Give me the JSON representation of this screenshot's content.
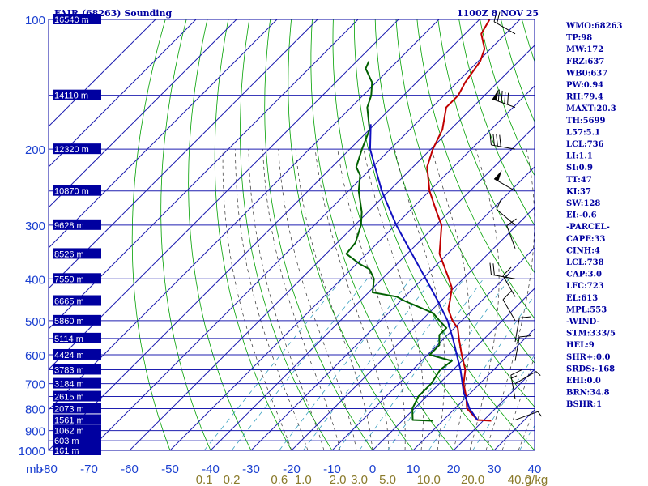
{
  "header": {
    "title": "FAIR (68263) Sounding",
    "valid_time": "1100Z  8 NOV 25"
  },
  "colors": {
    "frame": "#0000a0",
    "isobar": "#1f1fb0",
    "isotherm": "#1f1fb0",
    "dry_adiabat": "#00a000",
    "moist_adiabat": "#303030",
    "mixing_ratio": "#3aa0c0",
    "temperature": "#c00000",
    "dewpoint": "#006000",
    "parcel": "#1010c0",
    "barb": "#000000"
  },
  "chart_data": {
    "type": "line",
    "title": "FAIR (68263) Sounding",
    "diagram": "skew-T log-P",
    "pressure_unit": "mb",
    "pressure_ticks": [
      100,
      200,
      300,
      400,
      500,
      600,
      700,
      800,
      900,
      1000
    ],
    "temperature_ticks": [
      -80,
      -70,
      -60,
      -50,
      -40,
      -30,
      -20,
      -10,
      0,
      10,
      20,
      30,
      40
    ],
    "temperature_tick_labels": [
      "-80",
      "-70",
      "-60",
      "-50",
      "-40",
      "-30",
      "-20",
      "-10",
      "0",
      "10",
      "20",
      "30",
      "40"
    ],
    "xlim": [
      -80,
      40
    ],
    "ylim": [
      1000,
      100
    ],
    "grid": true,
    "mixing_ratio_labels": [
      "0.1",
      "0.2",
      "0.6",
      "1.0",
      "2.0",
      "3.0",
      "5.0",
      "10.0",
      "20.0",
      "40.0",
      "g/kg"
    ],
    "mixing_ratio_values": [
      0.1,
      0.2,
      0.6,
      1.0,
      2.0,
      3.0,
      5.0,
      10.0,
      20.0,
      40.0
    ],
    "height_labels": [
      {
        "p": 100,
        "label": "16540 m"
      },
      {
        "p": 150,
        "label": "14110 m"
      },
      {
        "p": 200,
        "label": "12320 m"
      },
      {
        "p": 250,
        "label": "10870 m"
      },
      {
        "p": 300,
        "label": "9628 m"
      },
      {
        "p": 350,
        "label": "8526 m"
      },
      {
        "p": 400,
        "label": "7550 m"
      },
      {
        "p": 450,
        "label": "6665 m"
      },
      {
        "p": 500,
        "label": "5860 m"
      },
      {
        "p": 550,
        "label": "5114 m"
      },
      {
        "p": 600,
        "label": "4424 m"
      },
      {
        "p": 650,
        "label": "3783 m"
      },
      {
        "p": 700,
        "label": "3184 m"
      },
      {
        "p": 750,
        "label": "2615 m"
      },
      {
        "p": 800,
        "label": "2073 m"
      },
      {
        "p": 850,
        "label": "1561 m"
      },
      {
        "p": 900,
        "label": "1062 m"
      },
      {
        "p": 950,
        "label": "603 m"
      },
      {
        "p": 1000,
        "label": "161 m"
      }
    ],
    "series": [
      {
        "key": "temperature",
        "points": [
          [
            854,
            22
          ],
          [
            850,
            18.4
          ],
          [
            800,
            13
          ],
          [
            750,
            9.8
          ],
          [
            700,
            6
          ],
          [
            650,
            3
          ],
          [
            600,
            -1.6
          ],
          [
            550,
            -6.3
          ],
          [
            520,
            -9.2
          ],
          [
            500,
            -12.3
          ],
          [
            470,
            -16.2
          ],
          [
            450,
            -17.8
          ],
          [
            420,
            -20.5
          ],
          [
            400,
            -23.5
          ],
          [
            350,
            -32
          ],
          [
            300,
            -38.6
          ],
          [
            280,
            -43
          ],
          [
            250,
            -50
          ],
          [
            220,
            -56.5
          ],
          [
            200,
            -59.5
          ],
          [
            180,
            -62
          ],
          [
            160,
            -66.5
          ],
          [
            150,
            -66.5
          ],
          [
            140,
            -68
          ],
          [
            125,
            -69.5
          ],
          [
            117,
            -71.5
          ],
          [
            108,
            -76
          ],
          [
            100,
            -77.5
          ]
        ]
      },
      {
        "key": "dewpoint",
        "points": [
          [
            854,
            7.5
          ],
          [
            850,
            2.4
          ],
          [
            800,
            -0.5
          ],
          [
            750,
            -2
          ],
          [
            700,
            -2
          ],
          [
            650,
            -3.2
          ],
          [
            620,
            -2.5
          ],
          [
            600,
            -9.5
          ],
          [
            570,
            -9.5
          ],
          [
            540,
            -12
          ],
          [
            520,
            -12
          ],
          [
            500,
            -15.5
          ],
          [
            480,
            -19
          ],
          [
            450,
            -29
          ],
          [
            440,
            -32
          ],
          [
            430,
            -39
          ],
          [
            400,
            -42
          ],
          [
            380,
            -45.5
          ],
          [
            370,
            -49
          ],
          [
            350,
            -55
          ],
          [
            330,
            -55.5
          ],
          [
            300,
            -58.5
          ],
          [
            280,
            -61.5
          ],
          [
            250,
            -67.5
          ],
          [
            230,
            -71
          ],
          [
            220,
            -74
          ],
          [
            200,
            -77
          ],
          [
            180,
            -80
          ],
          [
            160,
            -86
          ],
          [
            150,
            -88
          ],
          [
            140,
            -91
          ],
          [
            130,
            -96
          ],
          [
            125,
            -97
          ]
        ]
      },
      {
        "key": "parcel",
        "points": [
          [
            850,
            18.4
          ],
          [
            800,
            13.6
          ],
          [
            750,
            9.6
          ],
          [
            738,
            8.5
          ],
          [
            723,
            7.4
          ],
          [
            700,
            5.7
          ],
          [
            650,
            1.8
          ],
          [
            613,
            -1.6
          ],
          [
            600,
            -2.8
          ],
          [
            553,
            -7.5
          ],
          [
            500,
            -13.5
          ],
          [
            450,
            -20.8
          ],
          [
            400,
            -29.2
          ],
          [
            350,
            -38.8
          ],
          [
            300,
            -49.8
          ],
          [
            250,
            -61.8
          ],
          [
            200,
            -75
          ],
          [
            175,
            -81
          ]
        ]
      }
    ],
    "wind_barbs": [
      {
        "p": 108,
        "dir": 300,
        "speed": 20
      },
      {
        "p": 160,
        "dir": 290,
        "speed": 90
      },
      {
        "p": 200,
        "dir": 280,
        "speed": 40
      },
      {
        "p": 250,
        "dir": 300,
        "speed": 50
      },
      {
        "p": 300,
        "dir": 310,
        "speed": 10
      },
      {
        "p": 340,
        "dir": 340,
        "speed": 10
      },
      {
        "p": 400,
        "dir": 280,
        "speed": 20
      },
      {
        "p": 440,
        "dir": 330,
        "speed": 15
      },
      {
        "p": 500,
        "dir": 330,
        "speed": 10
      },
      {
        "p": 560,
        "dir": 10,
        "speed": 10
      },
      {
        "p": 620,
        "dir": 10,
        "speed": 10
      },
      {
        "p": 700,
        "dir": 60,
        "speed": 5
      },
      {
        "p": 760,
        "dir": 350,
        "speed": 15
      },
      {
        "p": 850,
        "dir": 70,
        "speed": 5
      }
    ]
  },
  "indices": [
    "WMO:68263",
    "TP:98",
    "MW:172",
    "FRZ:637",
    "WB0:637",
    "PW:0.94",
    "RH:79.4",
    "MAXT:20.3",
    "TH:5699",
    "L57:5.1",
    "LCL:736",
    "LI:1.1",
    "SI:0.9",
    "TT:47",
    "KI:37",
    "SW:128",
    "EI:-0.6",
    "-PARCEL-",
    "CAPE:33",
    "CINH:4",
    "LCL:738",
    "CAP:3.0",
    "LFC:723",
    "EL:613",
    "MPL:553",
    "-WIND-",
    "STM:333/5",
    "HEL:9",
    "SHR+:0.0",
    "SRDS:-168",
    "EHI:0.0",
    "BRN:34.8",
    "BSHR:1"
  ],
  "axis_unit_left": "mb"
}
